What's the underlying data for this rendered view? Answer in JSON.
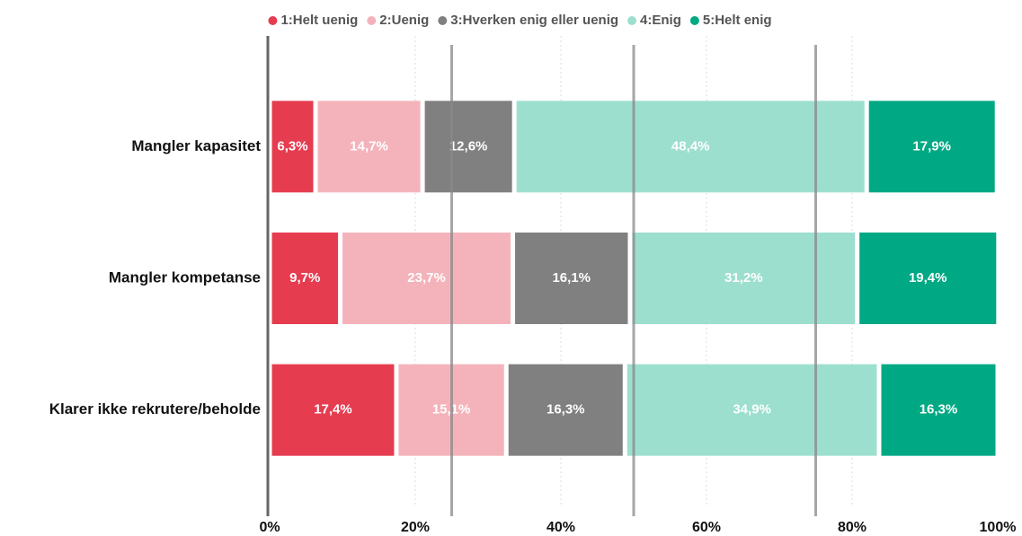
{
  "chart_data": {
    "type": "stacked-bar-horizontal",
    "categories": [
      "Mangler kapasitet",
      "Mangler kompetanse",
      "Klarer ikke rekrutere/beholde"
    ],
    "series": [
      {
        "name": "1:Helt uenig",
        "color": "#e63c50",
        "values": [
          6.3,
          9.7,
          17.4
        ],
        "value_labels": [
          "6,3%",
          "9,7%",
          "17,4%"
        ]
      },
      {
        "name": "2:Uenig",
        "color": "#f4b3bb",
        "values": [
          14.7,
          23.7,
          15.1
        ],
        "value_labels": [
          "14,7%",
          "23,7%",
          "15,1%"
        ]
      },
      {
        "name": "3:Hverken enig eller uenig",
        "color": "#808080",
        "values": [
          12.6,
          16.1,
          16.3
        ],
        "value_labels": [
          "12,6%",
          "16,1%",
          "16,3%"
        ]
      },
      {
        "name": "4:Enig",
        "color": "#9ddfcf",
        "values": [
          48.4,
          31.2,
          34.9
        ],
        "value_labels": [
          "48,4%",
          "31,2%",
          "34,9%"
        ]
      },
      {
        "name": "5:Helt enig",
        "color": "#00a984",
        "values": [
          17.9,
          19.4,
          16.3
        ],
        "value_labels": [
          "17,9%",
          "19,4%",
          "16,3%"
        ]
      }
    ],
    "xlim": [
      0,
      100
    ],
    "xticks": [
      {
        "value": 0,
        "label": "0%"
      },
      {
        "value": 20,
        "label": "20%"
      },
      {
        "value": 40,
        "label": "40%"
      },
      {
        "value": 60,
        "label": "60%"
      },
      {
        "value": 80,
        "label": "80%"
      },
      {
        "value": 100,
        "label": "100%"
      }
    ],
    "reference_lines": [
      25,
      50,
      75
    ],
    "grid": true,
    "legend": "top"
  }
}
